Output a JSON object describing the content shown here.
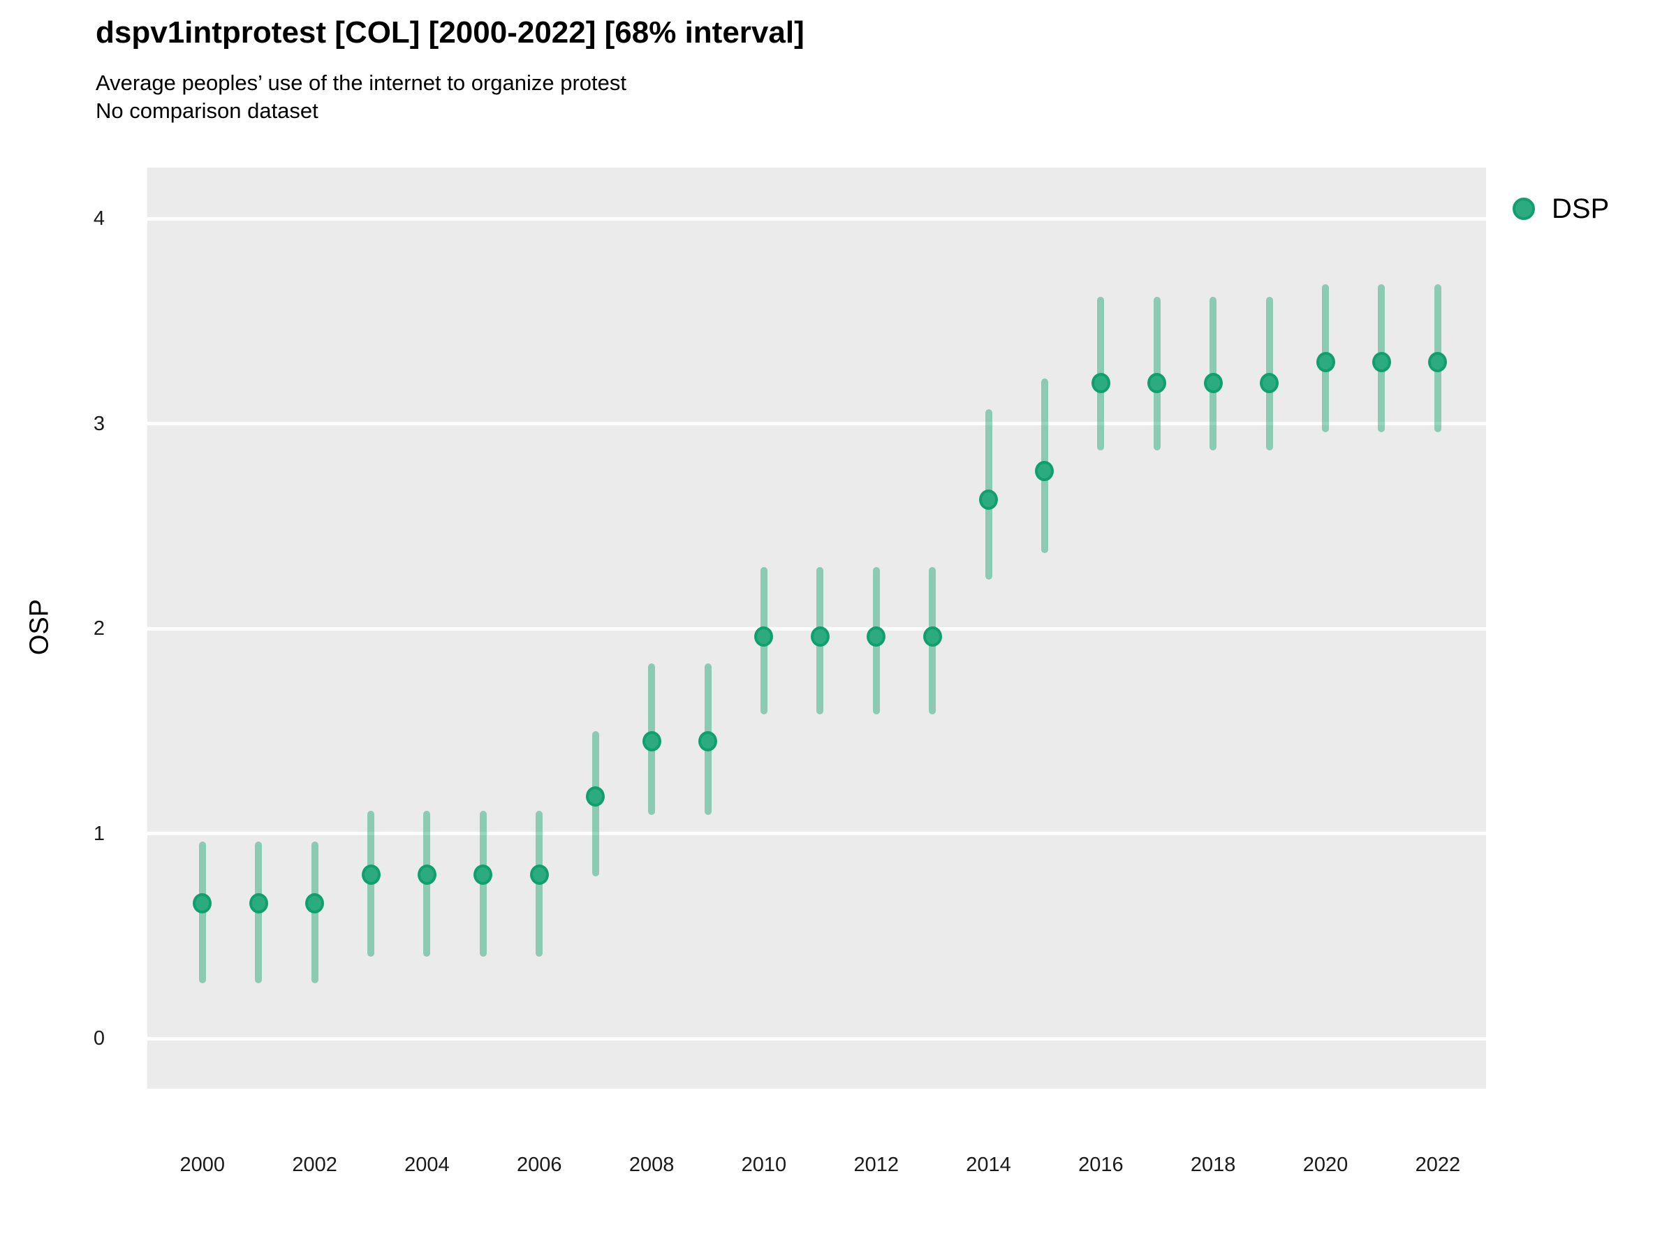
{
  "colors": {
    "panel_bg": "#EBEBEB",
    "grid": "#FFFFFF",
    "point_fill": "#2CAB80",
    "point_stroke": "#10A06D",
    "interval_color": "#17A26F",
    "interval_alpha": 0.45,
    "text": "#000000",
    "tick_text": "#1A1A1A"
  },
  "chart_data": {
    "type": "pointrange",
    "title": "dspv1intprotest [COL] [2000-2022] [68% interval]",
    "subtitle": "Average peoples’ use of the internet to organize protest",
    "note": "No comparison dataset",
    "xlabel": "",
    "ylabel": "OSP",
    "interval_label": "68% interval",
    "country": "COL",
    "grid": "major-horizontal-only",
    "legend_position": "right-top",
    "xlim": [
      1999.02,
      2022.86
    ],
    "ylim": [
      -0.245,
      4.25
    ],
    "x_ticks": [
      2000,
      2002,
      2004,
      2006,
      2008,
      2010,
      2012,
      2014,
      2016,
      2018,
      2020,
      2022
    ],
    "y_ticks": [
      0,
      1,
      2,
      3,
      4
    ],
    "series": [
      {
        "name": "DSP",
        "points": [
          {
            "year": 2000,
            "value": 0.66,
            "low": 0.27,
            "high": 0.96
          },
          {
            "year": 2001,
            "value": 0.66,
            "low": 0.27,
            "high": 0.96
          },
          {
            "year": 2002,
            "value": 0.66,
            "low": 0.27,
            "high": 0.96
          },
          {
            "year": 2003,
            "value": 0.8,
            "low": 0.4,
            "high": 1.11
          },
          {
            "year": 2004,
            "value": 0.8,
            "low": 0.4,
            "high": 1.11
          },
          {
            "year": 2005,
            "value": 0.8,
            "low": 0.4,
            "high": 1.11
          },
          {
            "year": 2006,
            "value": 0.8,
            "low": 0.4,
            "high": 1.11
          },
          {
            "year": 2007,
            "value": 1.18,
            "low": 0.79,
            "high": 1.5
          },
          {
            "year": 2008,
            "value": 1.45,
            "low": 1.09,
            "high": 1.83
          },
          {
            "year": 2009,
            "value": 1.45,
            "low": 1.09,
            "high": 1.83
          },
          {
            "year": 2010,
            "value": 1.96,
            "low": 1.58,
            "high": 2.3
          },
          {
            "year": 2011,
            "value": 1.96,
            "low": 1.58,
            "high": 2.3
          },
          {
            "year": 2012,
            "value": 1.96,
            "low": 1.58,
            "high": 2.3
          },
          {
            "year": 2013,
            "value": 1.96,
            "low": 1.58,
            "high": 2.3
          },
          {
            "year": 2014,
            "value": 2.63,
            "low": 2.24,
            "high": 3.07
          },
          {
            "year": 2015,
            "value": 2.77,
            "low": 2.37,
            "high": 3.22
          },
          {
            "year": 2016,
            "value": 3.2,
            "low": 2.87,
            "high": 3.62
          },
          {
            "year": 2017,
            "value": 3.2,
            "low": 2.87,
            "high": 3.62
          },
          {
            "year": 2018,
            "value": 3.2,
            "low": 2.87,
            "high": 3.62
          },
          {
            "year": 2019,
            "value": 3.2,
            "low": 2.87,
            "high": 3.62
          },
          {
            "year": 2020,
            "value": 3.3,
            "low": 2.96,
            "high": 3.68
          },
          {
            "year": 2021,
            "value": 3.3,
            "low": 2.96,
            "high": 3.68
          },
          {
            "year": 2022,
            "value": 3.3,
            "low": 2.96,
            "high": 3.68
          }
        ]
      }
    ]
  }
}
